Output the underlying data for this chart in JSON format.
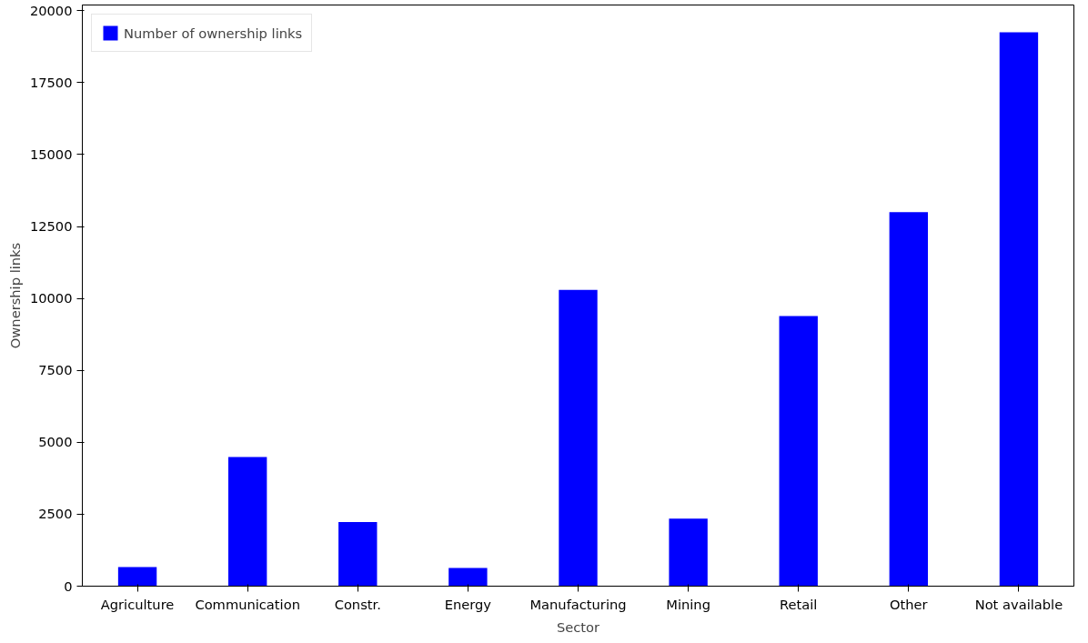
{
  "chart_data": {
    "type": "bar",
    "xlabel": "Sector",
    "ylabel": "Ownership links",
    "categories": [
      "Agriculture",
      "Communication",
      "Constr.",
      "Energy",
      "Manufacturing",
      "Mining",
      "Retail",
      "Other",
      "Not available"
    ],
    "series": [
      {
        "name": "Number of ownership links",
        "color": "#0000ff",
        "values": [
          660,
          4490,
          2230,
          630,
          10300,
          2350,
          9390,
          13000,
          19250
        ]
      }
    ],
    "ylim": [
      0,
      20200
    ],
    "yticks": [
      0,
      2500,
      5000,
      7500,
      10000,
      12500,
      15000,
      17500,
      20000
    ],
    "grid": false,
    "legend": "top left"
  }
}
